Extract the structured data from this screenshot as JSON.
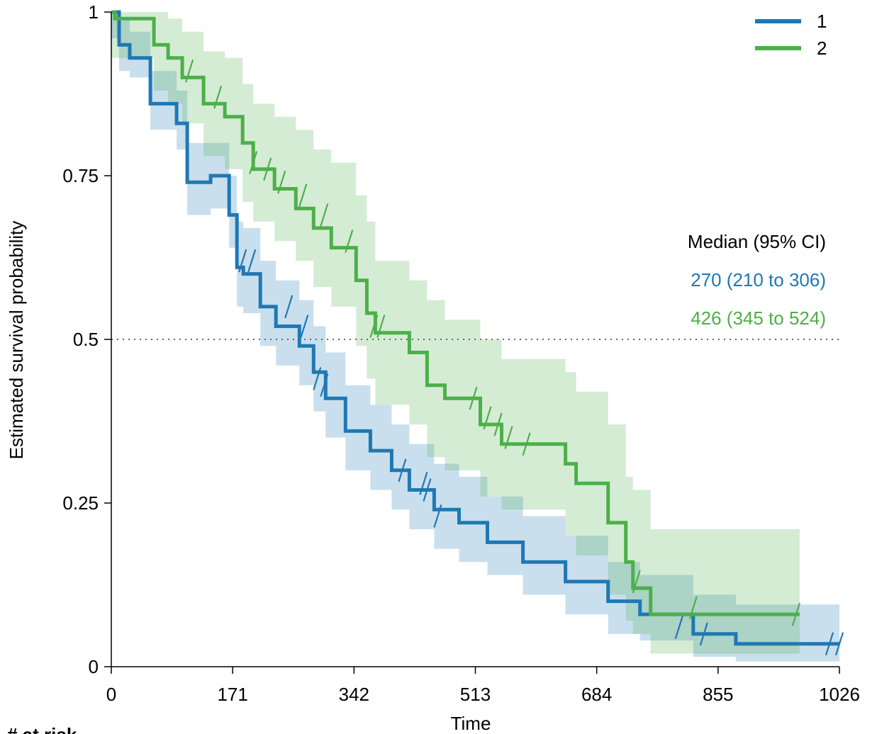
{
  "chart_data": {
    "type": "line",
    "subtype": "kaplan-meier",
    "xlabel": "Time",
    "ylabel": "Estimated survival probability",
    "xticks": [
      0,
      171,
      342,
      513,
      684,
      855,
      1026
    ],
    "xtick_labels": [
      "0",
      "171",
      "342",
      "513",
      "684",
      "855",
      "1026"
    ],
    "yticks": [
      0,
      0.25,
      0.5,
      0.75,
      1
    ],
    "ytick_labels": [
      "0",
      "0.25",
      "0.5",
      "0.75",
      "1"
    ],
    "xlim": [
      0,
      1026
    ],
    "ylim": [
      0,
      1
    ],
    "reference_line_y": 0.5,
    "legend_position": "top-right",
    "at_risk_label": "# at risk",
    "median_table": {
      "header": "Median (95% CI)",
      "rows": [
        {
          "series": "1",
          "text": "270 (210 to 306)"
        },
        {
          "series": "2",
          "text": "426 (345 to 524)"
        }
      ]
    },
    "series": [
      {
        "name": "1",
        "color": "#1f78b4",
        "steps": [
          [
            0,
            1
          ],
          [
            11,
            0.95
          ],
          [
            26,
            0.93
          ],
          [
            55,
            0.86
          ],
          [
            92,
            0.83
          ],
          [
            107,
            0.74
          ],
          [
            140,
            0.75
          ],
          [
            166,
            0.69
          ],
          [
            177,
            0.61
          ],
          [
            186,
            0.6
          ],
          [
            210,
            0.55
          ],
          [
            232,
            0.52
          ],
          [
            265,
            0.49
          ],
          [
            285,
            0.45
          ],
          [
            302,
            0.41
          ],
          [
            330,
            0.36
          ],
          [
            365,
            0.33
          ],
          [
            395,
            0.3
          ],
          [
            420,
            0.27
          ],
          [
            455,
            0.24
          ],
          [
            490,
            0.22
          ],
          [
            530,
            0.19
          ],
          [
            580,
            0.16
          ],
          [
            640,
            0.13
          ],
          [
            700,
            0.1
          ],
          [
            745,
            0.08
          ],
          [
            820,
            0.05
          ],
          [
            880,
            0.035
          ],
          [
            1026,
            0.035
          ]
        ],
        "censors": [
          [
            185,
            0.62
          ],
          [
            198,
            0.62
          ],
          [
            250,
            0.55
          ],
          [
            272,
            0.52
          ],
          [
            290,
            0.44
          ],
          [
            300,
            0.43
          ],
          [
            410,
            0.3
          ],
          [
            440,
            0.28
          ],
          [
            445,
            0.27
          ],
          [
            460,
            0.23
          ],
          [
            800,
            0.06
          ],
          [
            835,
            0.05
          ],
          [
            1012,
            0.035
          ],
          [
            1026,
            0.035
          ]
        ],
        "ci_lower": [
          [
            0,
            0.96
          ],
          [
            11,
            0.91
          ],
          [
            26,
            0.9
          ],
          [
            55,
            0.82
          ],
          [
            92,
            0.79
          ],
          [
            107,
            0.69
          ],
          [
            140,
            0.7
          ],
          [
            166,
            0.64
          ],
          [
            177,
            0.55
          ],
          [
            186,
            0.54
          ],
          [
            210,
            0.49
          ],
          [
            232,
            0.46
          ],
          [
            265,
            0.43
          ],
          [
            285,
            0.39
          ],
          [
            302,
            0.35
          ],
          [
            330,
            0.3
          ],
          [
            365,
            0.27
          ],
          [
            395,
            0.24
          ],
          [
            420,
            0.21
          ],
          [
            455,
            0.18
          ],
          [
            490,
            0.16
          ],
          [
            530,
            0.14
          ],
          [
            580,
            0.11
          ],
          [
            640,
            0.08
          ],
          [
            700,
            0.05
          ],
          [
            745,
            0.04
          ],
          [
            820,
            0.015
          ],
          [
            880,
            0.008
          ],
          [
            1026,
            0.008
          ]
        ],
        "ci_upper": [
          [
            0,
            1
          ],
          [
            11,
            0.99
          ],
          [
            26,
            0.97
          ],
          [
            55,
            0.91
          ],
          [
            92,
            0.88
          ],
          [
            107,
            0.8
          ],
          [
            140,
            0.8
          ],
          [
            166,
            0.75
          ],
          [
            177,
            0.68
          ],
          [
            186,
            0.67
          ],
          [
            210,
            0.62
          ],
          [
            232,
            0.59
          ],
          [
            265,
            0.56
          ],
          [
            285,
            0.52
          ],
          [
            302,
            0.48
          ],
          [
            330,
            0.43
          ],
          [
            365,
            0.4
          ],
          [
            395,
            0.37
          ],
          [
            420,
            0.34
          ],
          [
            455,
            0.31
          ],
          [
            490,
            0.29
          ],
          [
            530,
            0.26
          ],
          [
            580,
            0.23
          ],
          [
            640,
            0.2
          ],
          [
            700,
            0.16
          ],
          [
            745,
            0.14
          ],
          [
            820,
            0.11
          ],
          [
            880,
            0.095
          ],
          [
            1026,
            0.095
          ]
        ]
      },
      {
        "name": "2",
        "color": "#4daf4a",
        "steps": [
          [
            0,
            1
          ],
          [
            5,
            0.99
          ],
          [
            60,
            0.95
          ],
          [
            80,
            0.93
          ],
          [
            100,
            0.9
          ],
          [
            130,
            0.86
          ],
          [
            160,
            0.84
          ],
          [
            185,
            0.8
          ],
          [
            200,
            0.76
          ],
          [
            230,
            0.73
          ],
          [
            260,
            0.7
          ],
          [
            285,
            0.67
          ],
          [
            310,
            0.64
          ],
          [
            345,
            0.59
          ],
          [
            360,
            0.54
          ],
          [
            372,
            0.51
          ],
          [
            420,
            0.48
          ],
          [
            445,
            0.43
          ],
          [
            470,
            0.41
          ],
          [
            520,
            0.37
          ],
          [
            550,
            0.34
          ],
          [
            640,
            0.31
          ],
          [
            655,
            0.28
          ],
          [
            700,
            0.22
          ],
          [
            725,
            0.16
          ],
          [
            735,
            0.12
          ],
          [
            760,
            0.08
          ],
          [
            970,
            0.08
          ]
        ],
        "censors": [
          [
            110,
            0.91
          ],
          [
            150,
            0.87
          ],
          [
            200,
            0.77
          ],
          [
            220,
            0.76
          ],
          [
            240,
            0.74
          ],
          [
            270,
            0.72
          ],
          [
            300,
            0.69
          ],
          [
            335,
            0.65
          ],
          [
            370,
            0.52
          ],
          [
            380,
            0.52
          ],
          [
            510,
            0.41
          ],
          [
            530,
            0.38
          ],
          [
            545,
            0.37
          ],
          [
            560,
            0.35
          ],
          [
            585,
            0.34
          ],
          [
            740,
            0.13
          ],
          [
            820,
            0.09
          ],
          [
            965,
            0.08
          ]
        ],
        "ci_lower": [
          [
            0,
            0.93
          ],
          [
            5,
            0.93
          ],
          [
            60,
            0.88
          ],
          [
            80,
            0.86
          ],
          [
            100,
            0.83
          ],
          [
            130,
            0.78
          ],
          [
            160,
            0.76
          ],
          [
            185,
            0.71
          ],
          [
            200,
            0.68
          ],
          [
            230,
            0.65
          ],
          [
            260,
            0.62
          ],
          [
            285,
            0.58
          ],
          [
            310,
            0.55
          ],
          [
            345,
            0.49
          ],
          [
            360,
            0.44
          ],
          [
            372,
            0.4
          ],
          [
            420,
            0.37
          ],
          [
            445,
            0.32
          ],
          [
            470,
            0.3
          ],
          [
            520,
            0.26
          ],
          [
            550,
            0.24
          ],
          [
            640,
            0.2
          ],
          [
            655,
            0.17
          ],
          [
            700,
            0.11
          ],
          [
            725,
            0.07
          ],
          [
            735,
            0.05
          ],
          [
            760,
            0.02
          ],
          [
            970,
            0.02
          ]
        ],
        "ci_upper": [
          [
            0,
            1
          ],
          [
            5,
            1
          ],
          [
            60,
            1
          ],
          [
            80,
            0.99
          ],
          [
            100,
            0.97
          ],
          [
            130,
            0.94
          ],
          [
            160,
            0.93
          ],
          [
            185,
            0.89
          ],
          [
            200,
            0.86
          ],
          [
            230,
            0.84
          ],
          [
            260,
            0.82
          ],
          [
            285,
            0.79
          ],
          [
            310,
            0.77
          ],
          [
            345,
            0.72
          ],
          [
            360,
            0.68
          ],
          [
            372,
            0.62
          ],
          [
            420,
            0.59
          ],
          [
            445,
            0.56
          ],
          [
            470,
            0.53
          ],
          [
            520,
            0.5
          ],
          [
            550,
            0.47
          ],
          [
            640,
            0.45
          ],
          [
            655,
            0.42
          ],
          [
            700,
            0.37
          ],
          [
            725,
            0.29
          ],
          [
            735,
            0.27
          ],
          [
            760,
            0.21
          ],
          [
            970,
            0.21
          ]
        ]
      }
    ]
  }
}
